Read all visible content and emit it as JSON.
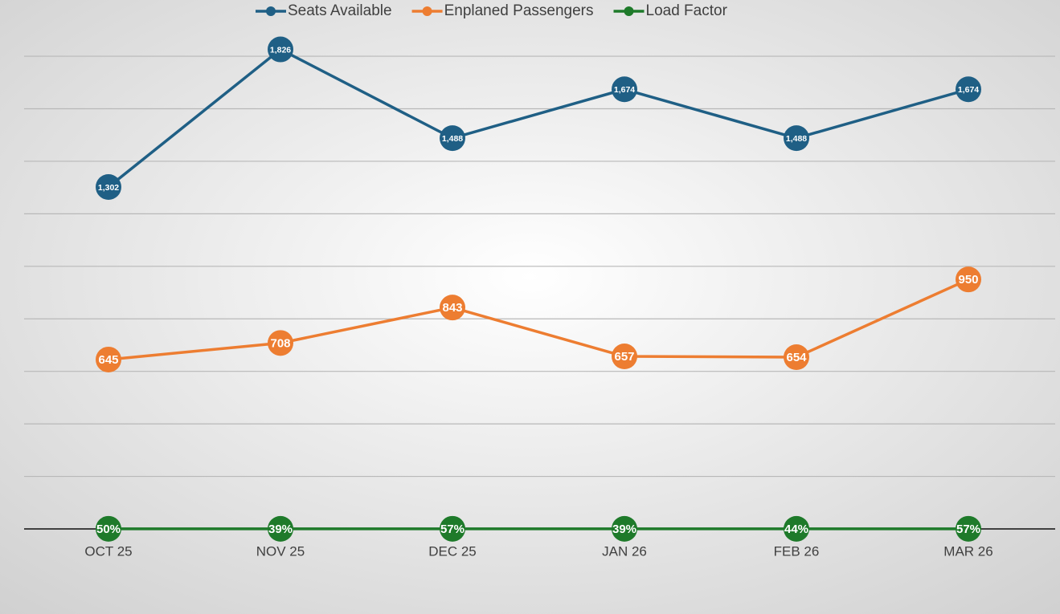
{
  "chart_data": {
    "type": "line",
    "categories": [
      "OCT 25",
      "NOV 25",
      "DEC 25",
      "JAN 26",
      "FEB 26",
      "MAR 26"
    ],
    "series": [
      {
        "name": "Seats Available",
        "color": "#1f5f85",
        "values": [
          1302,
          1826,
          1488,
          1674,
          1488,
          1674
        ],
        "value_labels": [
          "1,302",
          "1,826",
          "1,488",
          "1,674",
          "1,488",
          "1,674"
        ]
      },
      {
        "name": "Enplaned Passengers",
        "color": "#ed7d31",
        "values": [
          645,
          708,
          843,
          657,
          654,
          950
        ]
      },
      {
        "name": "Load Factor",
        "color": "#1e7a2a",
        "values": [
          0.5,
          0.39,
          0.57,
          0.39,
          0.44,
          0.57
        ],
        "value_labels": [
          "50%",
          "39%",
          "57%",
          "39%",
          "44%",
          "57%"
        ]
      }
    ],
    "ylim": [
      0,
      2000
    ],
    "yticks": [
      0,
      200,
      400,
      600,
      800,
      1000,
      1200,
      1400,
      1600,
      1800
    ],
    "grid": true,
    "legend": "top"
  }
}
